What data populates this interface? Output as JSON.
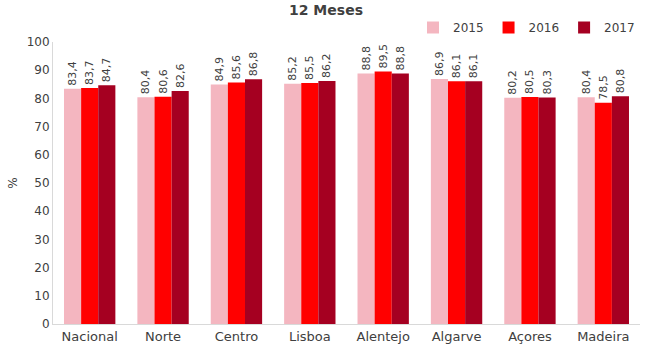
{
  "chart_data": {
    "type": "bar",
    "title": "12 Meses",
    "y_label": "%",
    "categories": [
      "Nacional",
      "Norte",
      "Centro",
      "Lisboa",
      "Alentejo",
      "Algarve",
      "Açores",
      "Madeira"
    ],
    "series": [
      {
        "name": "2015",
        "color": "#f4b6c0",
        "values": [
          83.4,
          80.4,
          84.9,
          85.2,
          88.8,
          86.9,
          80.2,
          80.4
        ],
        "value_labels": [
          "83,4",
          "80,4",
          "84,9",
          "85,2",
          "88,8",
          "86,9",
          "80,2",
          "80,4"
        ]
      },
      {
        "name": "2016",
        "color": "#ff0000",
        "values": [
          83.7,
          80.6,
          85.6,
          85.5,
          89.5,
          86.1,
          80.5,
          78.5
        ],
        "value_labels": [
          "83,7",
          "80,6",
          "85,6",
          "85,5",
          "89,5",
          "86,1",
          "80,5",
          "78,5"
        ]
      },
      {
        "name": "2017",
        "color": "#a50021",
        "values": [
          84.7,
          82.6,
          86.8,
          86.2,
          88.8,
          86.1,
          80.3,
          80.8
        ],
        "value_labels": [
          "84,7",
          "82,6",
          "86,8",
          "86,2",
          "88,8",
          "86,1",
          "80,3",
          "80,8"
        ]
      }
    ],
    "ylim": [
      0,
      100
    ],
    "yticks": [
      0,
      10,
      20,
      30,
      40,
      50,
      60,
      70,
      80,
      90,
      100
    ],
    "grid": false,
    "legend": "top-right",
    "data_labels": true
  }
}
